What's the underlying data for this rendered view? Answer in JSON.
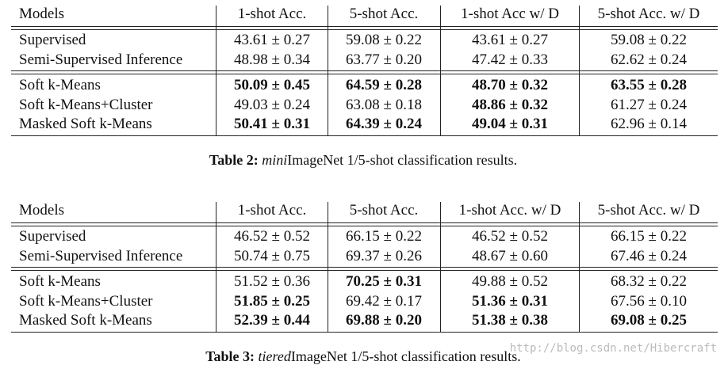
{
  "tables": [
    {
      "header": [
        "Models",
        "1-shot Acc.",
        "5-shot Acc.",
        "1-shot Acc w/ D",
        "5-shot Acc. w/ D"
      ],
      "groups": [
        [
          {
            "model": "Supervised",
            "cells": [
              "43.61 ± 0.27",
              "59.08 ± 0.22",
              "43.61 ± 0.27",
              "59.08 ± 0.22"
            ],
            "bold": [
              false,
              false,
              false,
              false
            ]
          },
          {
            "model": "Semi-Supervised Inference",
            "cells": [
              "48.98 ± 0.34",
              "63.77 ± 0.20",
              "47.42 ± 0.33",
              "62.62 ± 0.24"
            ],
            "bold": [
              false,
              false,
              false,
              false
            ]
          }
        ],
        [
          {
            "model": "Soft k-Means",
            "cells": [
              "50.09 ± 0.45",
              "64.59 ± 0.28",
              "48.70 ± 0.32",
              "63.55 ± 0.28"
            ],
            "bold": [
              true,
              true,
              true,
              true
            ]
          },
          {
            "model": "Soft k-Means+Cluster",
            "cells": [
              "49.03 ± 0.24",
              "63.08 ± 0.18",
              "48.86 ± 0.32",
              "61.27 ± 0.24"
            ],
            "bold": [
              false,
              false,
              true,
              false
            ]
          },
          {
            "model": "Masked Soft k-Means",
            "cells": [
              "50.41 ± 0.31",
              "64.39 ± 0.24",
              "49.04 ± 0.31",
              "62.96 ± 0.14"
            ],
            "bold": [
              true,
              true,
              true,
              false
            ]
          }
        ]
      ],
      "caption": {
        "label": "Table 2:",
        "italic": "mini",
        "text": "ImageNet 1/5-shot classification results."
      }
    },
    {
      "header": [
        "Models",
        "1-shot Acc.",
        "5-shot Acc.",
        "1-shot Acc. w/ D",
        "5-shot Acc. w/ D"
      ],
      "groups": [
        [
          {
            "model": "Supervised",
            "cells": [
              "46.52 ± 0.52",
              "66.15 ± 0.22",
              "46.52 ± 0.52",
              "66.15 ± 0.22"
            ],
            "bold": [
              false,
              false,
              false,
              false
            ]
          },
          {
            "model": "Semi-Supervised Inference",
            "cells": [
              "50.74 ± 0.75",
              "69.37 ± 0.26",
              "48.67 ± 0.60",
              "67.46 ± 0.24"
            ],
            "bold": [
              false,
              false,
              false,
              false
            ]
          }
        ],
        [
          {
            "model": "Soft k-Means",
            "cells": [
              "51.52 ± 0.36",
              "70.25 ± 0.31",
              "49.88 ± 0.52",
              "68.32 ± 0.22"
            ],
            "bold": [
              false,
              true,
              false,
              false
            ]
          },
          {
            "model": "Soft k-Means+Cluster",
            "cells": [
              "51.85 ± 0.25",
              "69.42 ± 0.17",
              "51.36 ± 0.31",
              "67.56 ± 0.10"
            ],
            "bold": [
              true,
              false,
              true,
              false
            ]
          },
          {
            "model": "Masked Soft k-Means",
            "cells": [
              "52.39 ± 0.44",
              "69.88 ± 0.20",
              "51.38 ± 0.38",
              "69.08 ± 0.25"
            ],
            "bold": [
              true,
              true,
              true,
              true
            ]
          }
        ]
      ],
      "caption": {
        "label": "Table 3:",
        "italic": "tiered",
        "text": "ImageNet 1/5-shot classification results."
      }
    }
  ],
  "watermark": "http://blog.csdn.net/Hibercraft"
}
